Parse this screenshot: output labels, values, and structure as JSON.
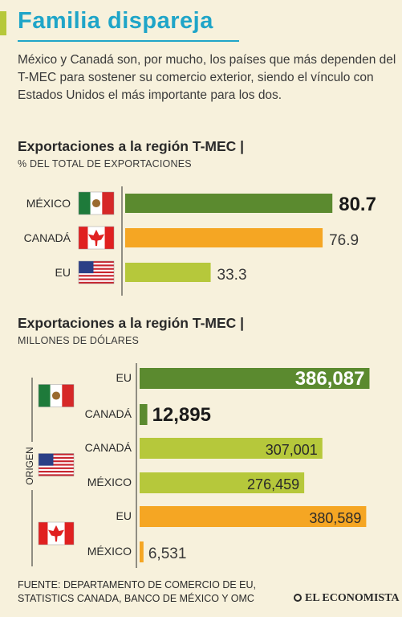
{
  "header": {
    "title": "Familia dispareja",
    "intro": "México y Canadá son, por mucho, los países que más dependen del T-MEC para sostener su comercio exterior, siendo el vínculo con Estados Unidos el más importante para los dos."
  },
  "colors": {
    "accent": "#1fa5c8",
    "mexico": "#5b8a2f",
    "canada": "#f5a623",
    "eu": "#b6c83b",
    "background": "#f7f1dc"
  },
  "chart_data": [
    {
      "type": "bar",
      "orientation": "horizontal",
      "title": "Exportaciones a la región T-MEC |",
      "subtitle": "% DEL TOTAL DE EXPORTACIONES",
      "categories": [
        "MÉXICO",
        "CANADÁ",
        "EU"
      ],
      "values": [
        80.7,
        76.9,
        33.3
      ],
      "value_labels": [
        "80.7",
        "76.9",
        "33.3"
      ],
      "flags": [
        "mexico-flag-icon",
        "canada-flag-icon",
        "us-flag-icon"
      ],
      "bar_colors": [
        "#5b8a2f",
        "#f5a623",
        "#b6c83b"
      ],
      "highlight_index": 0
    },
    {
      "type": "bar",
      "orientation": "horizontal",
      "title": "Exportaciones a la región T-MEC |",
      "subtitle": "MILLONES DE DÓLARES",
      "origin_label": "ORIGEN",
      "groups": [
        {
          "origin_flag": "mexico-flag-icon",
          "color": "#5b8a2f",
          "categories": [
            "EU",
            "CANADÁ"
          ],
          "values": [
            386087,
            12895
          ],
          "value_labels": [
            "386,087",
            "12,895"
          ]
        },
        {
          "origin_flag": "us-flag-icon",
          "color": "#b6c83b",
          "categories": [
            "CANADÁ",
            "MÉXICO"
          ],
          "values": [
            307001,
            276459
          ],
          "value_labels": [
            "307,001",
            "276,459"
          ]
        },
        {
          "origin_flag": "canada-flag-icon",
          "color": "#f5a623",
          "categories": [
            "EU",
            "MÉXICO"
          ],
          "values": [
            380589,
            6531
          ],
          "value_labels": [
            "380,589",
            "6,531"
          ]
        }
      ]
    }
  ],
  "footer": {
    "source_line1": "FUENTE: DEPARTAMENTO DE COMERCIO DE EU,",
    "source_line2": "STATISTICS CANADA, BANCO DE MÉXICO Y OMC",
    "brand": "EL ECONOMISTA"
  }
}
